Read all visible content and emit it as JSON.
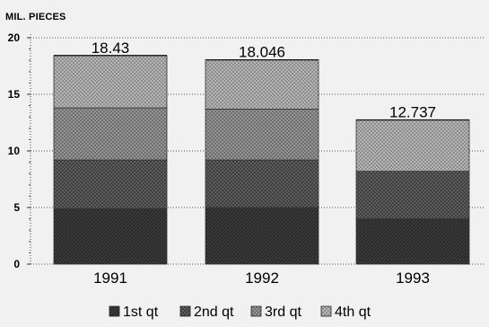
{
  "chart_data": {
    "type": "bar",
    "stacked": true,
    "unit_label": "MIL. PIECES",
    "categories": [
      "1991",
      "1992",
      "1993"
    ],
    "series": [
      {
        "name": "1st qt",
        "values": [
          4.9,
          5.0,
          4.0
        ],
        "color": "#3a3a3a"
      },
      {
        "name": "2nd qt",
        "values": [
          4.3,
          4.2,
          4.2
        ],
        "color": "#5e5e5e"
      },
      {
        "name": "3rd qt",
        "values": [
          4.6,
          4.5,
          0.0
        ],
        "color": "#9a9a9a"
      },
      {
        "name": "4th qt",
        "values": [
          4.63,
          4.346,
          4.537
        ],
        "color": "#b8b8b8"
      }
    ],
    "totals": [
      "18.43",
      "18.046",
      "12.737"
    ],
    "y_ticks": [
      "0",
      "5",
      "10",
      "15",
      "20"
    ],
    "ylim": [
      0,
      20
    ],
    "grid": true,
    "legend_position": "bottom"
  }
}
